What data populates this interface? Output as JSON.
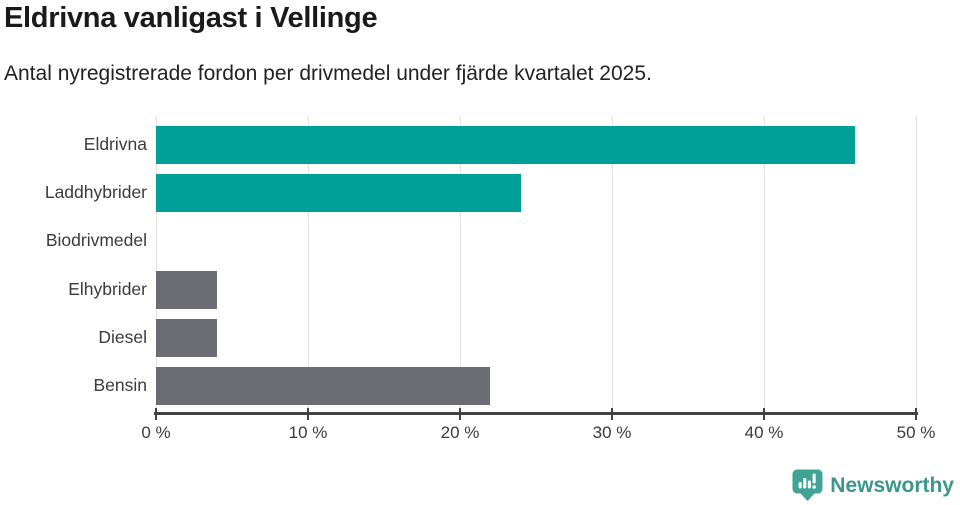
{
  "header": {
    "title": "Eldrivna vanligast i Vellinge",
    "subtitle": "Antal nyregistrerade fordon per drivmedel under fjärde kvartalet 2025."
  },
  "chart_data": {
    "type": "bar",
    "orientation": "horizontal",
    "title": "Eldrivna vanligast i Vellinge",
    "subtitle": "Antal nyregistrerade fordon per drivmedel under fjärde kvartalet 2025.",
    "categories": [
      "Eldrivna",
      "Laddhybrider",
      "Biodrivmedel",
      "Elhybrider",
      "Diesel",
      "Bensin"
    ],
    "values": [
      46,
      24,
      0,
      4,
      4,
      22
    ],
    "unit": "%",
    "xlim": [
      0,
      50
    ],
    "x_ticks": [
      0,
      10,
      20,
      30,
      40,
      50
    ],
    "x_tick_labels": [
      "0 %",
      "10 %",
      "20 %",
      "30 %",
      "40 %",
      "50 %"
    ],
    "grid": true,
    "legend": "none",
    "bar_colors": [
      "#00a099",
      "#00a099",
      "#6c6c74",
      "#6c6c74",
      "#6c6c74",
      "#6c6c74"
    ],
    "colors": {
      "highlight": "#00a099",
      "base": "#6c6c74",
      "gridline": "#e2e2e2",
      "axis": "#424242"
    }
  },
  "footer": {
    "brand": "Newsworthy"
  }
}
